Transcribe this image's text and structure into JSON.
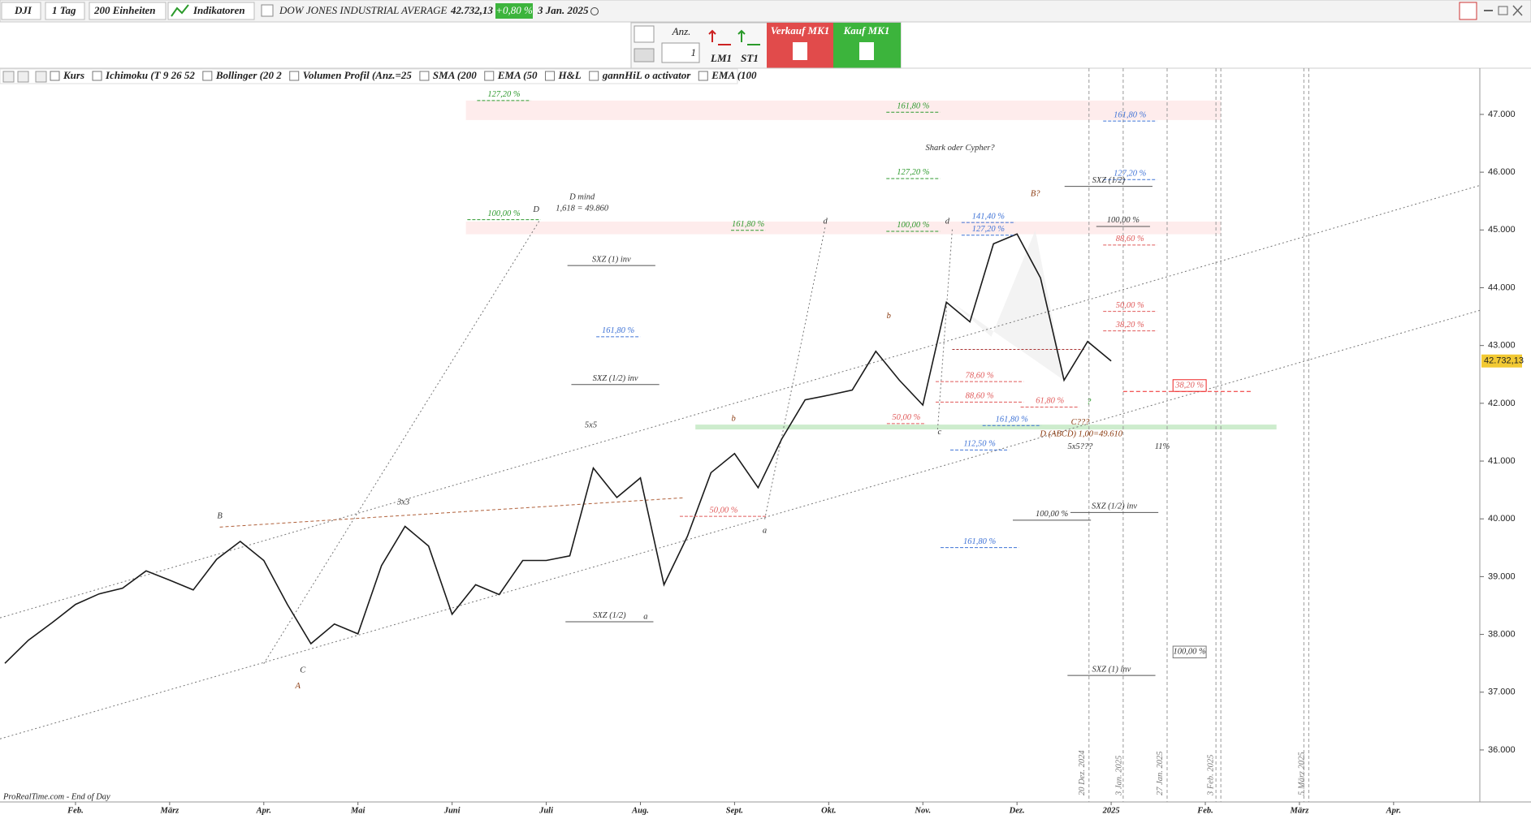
{
  "toolbar": {
    "symbol": "DJI",
    "period": "1 Tag",
    "units": "200 Einheiten",
    "indicators_button": "Indikatoren",
    "instrument": "DOW JONES INDUSTRIAL AVERAGE",
    "price": "42.732,13",
    "change": "+0,80 %",
    "date": "3 Jan. 2025"
  },
  "order_panel": {
    "quantity_label": "Anz.",
    "quantity": "1",
    "lm": "LM1",
    "st": "ST1",
    "sell": "Verkauf MK1",
    "buy": "Kauf MK1"
  },
  "indicators": [
    "Kurs",
    "Ichimoku (T 9 26 52",
    "Bollinger (20 2",
    "Volumen Profil (Anz.=25",
    "SMA (200",
    "EMA (50",
    "H&L",
    "gannHiL o activator",
    "EMA (100"
  ],
  "chart_data": {
    "type": "line",
    "categories": [
      null,
      null,
      null,
      "Feb.",
      null,
      null,
      null,
      "März",
      null,
      null,
      null,
      "Apr.",
      null,
      null,
      null,
      "Mai",
      null,
      null,
      null,
      "Juni",
      null,
      null,
      null,
      "Juli",
      null,
      null,
      null,
      "Aug.",
      null,
      null,
      null,
      "Sept.",
      null,
      null,
      null,
      "Okt.",
      null,
      null,
      null,
      "Nov.",
      null,
      null,
      null,
      "Dez.",
      null,
      null,
      null,
      "2025",
      null,
      null,
      null,
      "Feb.",
      null,
      null,
      null,
      "März",
      null,
      null,
      null,
      "Apr."
    ],
    "values": [
      37500,
      37900,
      38200,
      38520,
      38700,
      38800,
      39100,
      38940,
      38770,
      39300,
      39610,
      39280,
      38520,
      37840,
      38180,
      38010,
      39190,
      39870,
      39530,
      38350,
      38860,
      38690,
      39280,
      39280,
      39360,
      40880,
      40370,
      40710,
      38860,
      39700,
      40800,
      41130,
      40540,
      41380,
      42060,
      42140,
      42230,
      42900,
      42400,
      41970,
      43750,
      43410,
      44760,
      44930,
      44170,
      42400,
      43070,
      42732.13,
      null,
      null,
      null,
      null,
      null,
      null,
      null,
      null,
      null,
      null,
      null,
      null
    ],
    "color": "#1a1a1a",
    "ylim": [
      35100,
      47800
    ],
    "yticks": [
      {
        "value": 36000,
        "label": "36.000"
      },
      {
        "value": 37000,
        "label": "37.000"
      },
      {
        "value": 38000,
        "label": "38.000"
      },
      {
        "value": 39000,
        "label": "39.000"
      },
      {
        "value": 40000,
        "label": "40.000"
      },
      {
        "value": 41000,
        "label": "41.000"
      },
      {
        "value": 42000,
        "label": "42.000"
      },
      {
        "value": 43000,
        "label": "43.000"
      },
      {
        "value": 44000,
        "label": "44.000"
      },
      {
        "value": 45000,
        "label": "45.000"
      },
      {
        "value": 46000,
        "label": "46.000"
      },
      {
        "value": 47000,
        "label": "47.000"
      }
    ],
    "annotations": [
      "127,20 %",
      "161,80 %",
      "161,80 %",
      "Shark oder Cypher?",
      "127,20 %",
      "127,20 %",
      "SXZ (1/2)",
      "D mind",
      "1,618 = 49.860",
      "100,00 %",
      "D",
      "161,80 %",
      "d",
      "100,00 %",
      "d",
      "141,40 %",
      "127,20 %",
      "100,00 %",
      "B?",
      "88,60 %",
      "SXZ (1) inv",
      "161,80 %",
      "b",
      "50,00 %",
      "38,20 %",
      "SXZ (1/2) inv",
      "78,60 %",
      "88,60 %",
      "61,80 %",
      "?",
      "38,20 %",
      "50,00 %",
      "161,80 %",
      "C???",
      "D (ABCD)  1,00=49.610",
      "c",
      "5x5???",
      "112,50 %",
      "11%",
      "5x5",
      "b",
      "3x3",
      "B",
      "50,00 %",
      "100,00 %",
      "SXZ (1/2) inv",
      "a",
      "161,80 %",
      "SXZ (1/2)",
      "a",
      "100,00 %",
      "C",
      "SXZ (1) inv",
      "A"
    ],
    "date_markers": [
      "20 Dez. 2024",
      "3 Jan. 2025",
      "27 Jan. 2025",
      "3 Feb. 2025",
      "5 März 2025"
    ],
    "source": "ProRealTime.com - End of Day"
  }
}
